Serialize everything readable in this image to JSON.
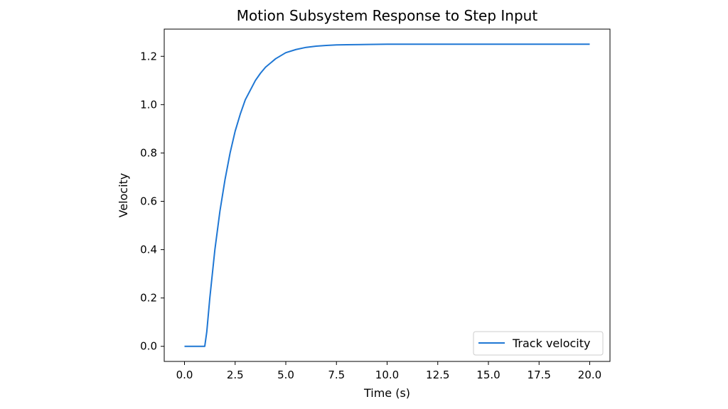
{
  "chart_data": {
    "type": "line",
    "title": "Motion Subsystem Response to Step Input",
    "xlabel": "Time (s)",
    "ylabel": "Velocity",
    "xlim": [
      -1.0,
      21.0
    ],
    "ylim": [
      -0.0625,
      1.3125
    ],
    "xticks": [
      0.0,
      2.5,
      5.0,
      7.5,
      10.0,
      12.5,
      15.0,
      17.5,
      20.0
    ],
    "xtick_labels": [
      "0.0",
      "2.5",
      "5.0",
      "7.5",
      "10.0",
      "12.5",
      "15.0",
      "17.5",
      "20.0"
    ],
    "yticks": [
      0.0,
      0.2,
      0.4,
      0.6,
      0.8,
      1.0,
      1.2
    ],
    "ytick_labels": [
      "0.0",
      "0.2",
      "0.4",
      "0.6",
      "0.8",
      "1.0",
      "1.2"
    ],
    "grid": false,
    "legend_position": "lower-right",
    "series": [
      {
        "name": "Track velocity",
        "color": "#1f77d4",
        "x": [
          0,
          0.5,
          1.0,
          1.1,
          1.25,
          1.5,
          1.75,
          2.0,
          2.25,
          2.5,
          2.75,
          3.0,
          3.25,
          3.5,
          3.75,
          4.0,
          4.5,
          5.0,
          5.5,
          6.0,
          6.5,
          7.0,
          7.5,
          8.0,
          9.0,
          10.0,
          11.0,
          12.0,
          14.0,
          16.0,
          18.0,
          20.0
        ],
        "y": [
          0.0,
          0.0,
          0.0,
          0.06,
          0.2,
          0.4,
          0.56,
          0.69,
          0.8,
          0.89,
          0.96,
          1.02,
          1.06,
          1.1,
          1.13,
          1.155,
          1.19,
          1.215,
          1.228,
          1.237,
          1.242,
          1.245,
          1.247,
          1.248,
          1.249,
          1.25,
          1.25,
          1.25,
          1.25,
          1.25,
          1.25,
          1.25
        ]
      }
    ]
  }
}
